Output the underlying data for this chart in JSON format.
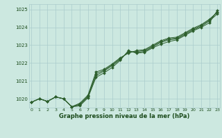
{
  "x": [
    0,
    1,
    2,
    3,
    4,
    5,
    6,
    7,
    8,
    9,
    10,
    11,
    12,
    13,
    14,
    15,
    16,
    17,
    18,
    19,
    20,
    21,
    22,
    23
  ],
  "line1": [
    1019.8,
    1020.0,
    1019.85,
    1020.1,
    1020.0,
    1019.55,
    1019.6,
    1020.05,
    1021.2,
    1021.45,
    1021.75,
    1022.15,
    1022.7,
    1022.55,
    1022.6,
    1022.85,
    1023.05,
    1023.2,
    1023.3,
    1023.55,
    1023.8,
    1024.0,
    1024.25,
    1024.95
  ],
  "line2": [
    1019.8,
    1020.0,
    1019.85,
    1020.1,
    1020.0,
    1019.55,
    1019.65,
    1020.1,
    1021.3,
    1021.55,
    1021.85,
    1022.2,
    1022.65,
    1022.6,
    1022.65,
    1022.9,
    1023.15,
    1023.3,
    1023.35,
    1023.6,
    1023.85,
    1024.05,
    1024.35,
    1024.75
  ],
  "line3": [
    1019.8,
    1020.0,
    1019.85,
    1020.1,
    1020.0,
    1019.55,
    1019.7,
    1020.15,
    1021.4,
    1021.6,
    1021.9,
    1022.25,
    1022.6,
    1022.65,
    1022.7,
    1022.95,
    1023.2,
    1023.35,
    1023.4,
    1023.65,
    1023.9,
    1024.1,
    1024.4,
    1024.85
  ],
  "line4": [
    1019.8,
    1020.0,
    1019.85,
    1020.1,
    1020.0,
    1019.55,
    1019.75,
    1020.2,
    1021.5,
    1021.65,
    1021.95,
    1022.3,
    1022.55,
    1022.7,
    1022.75,
    1023.0,
    1023.25,
    1023.4,
    1023.45,
    1023.7,
    1023.95,
    1024.15,
    1024.45,
    1024.85
  ],
  "title": "Graphe pression niveau de la mer (hPa)",
  "bg_color": "#cce8e0",
  "grid_color": "#aacccc",
  "line_color": "#2d5f2d",
  "label_color": "#1a4a1a",
  "ylim_min": 1019.5,
  "ylim_max": 1025.3,
  "yticks": [
    1020,
    1021,
    1022,
    1023,
    1024,
    1025
  ],
  "xticks": [
    0,
    1,
    2,
    3,
    4,
    5,
    6,
    7,
    8,
    9,
    10,
    11,
    12,
    13,
    14,
    15,
    16,
    17,
    18,
    19,
    20,
    21,
    22,
    23
  ]
}
